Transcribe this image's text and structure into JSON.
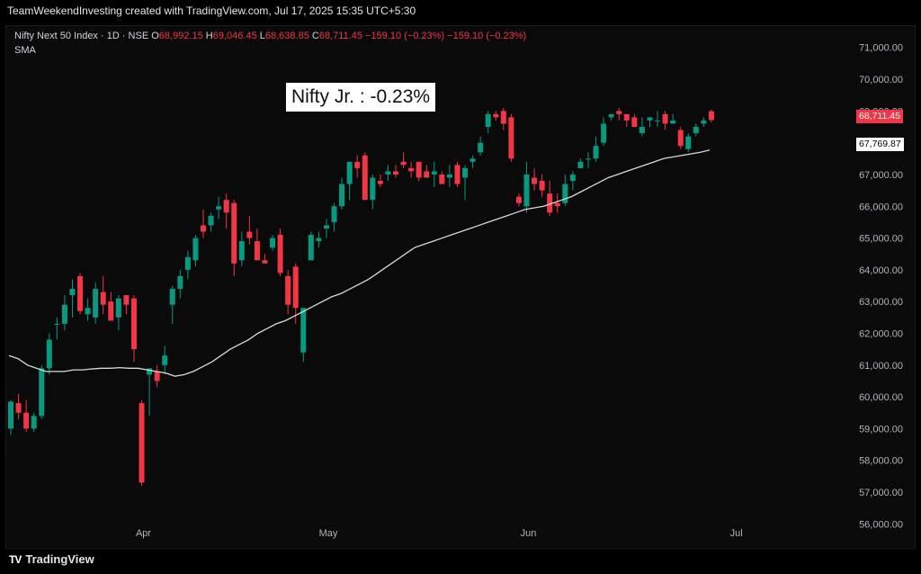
{
  "header": {
    "banner": "TeamWeekendInvesting created with TradingView.com, Jul 17, 2025 15:35 UTC+5:30"
  },
  "legend": {
    "symbol": "Nifty Next 50 Index · 1D · NSE",
    "o_label": "O",
    "o_value": "68,992.15",
    "h_label": "H",
    "h_value": "69,046.45",
    "l_label": "L",
    "l_value": "68,638.85",
    "c_label": "C",
    "c_value": "68,711.45",
    "change": "−159.10 (−0.23%)",
    "change2": "−159.10 (−0.23%)",
    "indicator": "SMA"
  },
  "annotation": "Nifty Jr. : -0.23%",
  "price_tags": {
    "last_price": "68,711.45",
    "sma_value": "67,769.87"
  },
  "branding": {
    "logo": "TV",
    "name": "TradingView"
  },
  "colors": {
    "up": "#089981",
    "down": "#f23645",
    "sma": "#d9d9d9",
    "background": "#0a0a0a",
    "axis_text": "#b2b5be"
  },
  "chart_data": {
    "type": "candlestick",
    "title": "Nifty Next 50 Index · 1D · NSE",
    "ylim": [
      55500,
      71700
    ],
    "y_ticks": [
      "71,000.00",
      "70,000.00",
      "69,000.00",
      "68,000.00",
      "67,000.00",
      "66,000.00",
      "65,000.00",
      "64,000.00",
      "63,000.00",
      "62,000.00",
      "61,000.00",
      "60,000.00",
      "59,000.00",
      "58,000.00",
      "57,000.00",
      "56,000.00"
    ],
    "y_tick_values": [
      71000,
      70000,
      69000,
      68000,
      67000,
      66000,
      65000,
      64000,
      63000,
      62000,
      61000,
      60000,
      59000,
      58000,
      57000,
      56000
    ],
    "x_ticks": [
      {
        "label": "Apr",
        "index": 17
      },
      {
        "label": "May",
        "index": 41
      },
      {
        "label": "Jun",
        "index": 67
      },
      {
        "label": "Jul",
        "index": 94
      }
    ],
    "candles": [
      [
        59000,
        59900,
        58800,
        59850
      ],
      [
        59800,
        60100,
        59300,
        59500
      ],
      [
        59500,
        59900,
        58900,
        59000
      ],
      [
        59000,
        59500,
        58900,
        59400
      ],
      [
        59400,
        61000,
        59300,
        60900
      ],
      [
        60900,
        62000,
        60700,
        61800
      ],
      [
        62300,
        62500,
        61800,
        62300
      ],
      [
        62300,
        63200,
        62100,
        62900
      ],
      [
        63200,
        63700,
        62500,
        63400
      ],
      [
        63800,
        63900,
        62600,
        62700
      ],
      [
        62600,
        63100,
        62400,
        62800
      ],
      [
        62500,
        63600,
        62300,
        63400
      ],
      [
        63300,
        63800,
        62600,
        62900
      ],
      [
        63000,
        63300,
        62500,
        62400
      ],
      [
        62500,
        63200,
        62100,
        63100
      ],
      [
        63200,
        63200,
        62600,
        62900
      ],
      [
        63100,
        63200,
        61100,
        61500
      ],
      [
        59800,
        59900,
        57200,
        57300
      ],
      [
        60700,
        60800,
        59400,
        60900
      ],
      [
        60800,
        61000,
        60300,
        60500
      ],
      [
        61000,
        61600,
        60700,
        61300
      ],
      [
        62900,
        63500,
        62300,
        63400
      ],
      [
        63400,
        64000,
        63100,
        63800
      ],
      [
        64000,
        64600,
        63700,
        64400
      ],
      [
        64300,
        65100,
        64100,
        65000
      ],
      [
        65400,
        65900,
        65000,
        65200
      ],
      [
        65400,
        65800,
        65200,
        65700
      ],
      [
        65900,
        66300,
        65600,
        66000
      ],
      [
        66200,
        66400,
        65300,
        65800
      ],
      [
        66100,
        66200,
        63800,
        64200
      ],
      [
        64300,
        65200,
        64100,
        64900
      ],
      [
        65200,
        65700,
        64800,
        65000
      ],
      [
        64900,
        65300,
        64300,
        64300
      ],
      [
        64300,
        64500,
        64200,
        64200
      ],
      [
        64700,
        65100,
        64600,
        65000
      ],
      [
        65100,
        65300,
        63800,
        63900
      ],
      [
        63800,
        64000,
        62600,
        62900
      ],
      [
        64100,
        64200,
        62300,
        62800
      ],
      [
        61400,
        62800,
        61100,
        62800
      ],
      [
        64300,
        65200,
        64300,
        65100
      ],
      [
        64900,
        65200,
        64700,
        65000
      ],
      [
        65300,
        65600,
        65000,
        65400
      ],
      [
        65500,
        66100,
        65200,
        66000
      ],
      [
        66000,
        66900,
        65900,
        66700
      ],
      [
        66700,
        67400,
        66200,
        67400
      ],
      [
        67400,
        67600,
        66900,
        67200
      ],
      [
        67600,
        67700,
        66200,
        66200
      ],
      [
        66200,
        67000,
        65900,
        66900
      ],
      [
        66800,
        67000,
        66600,
        66700
      ],
      [
        67000,
        67300,
        66800,
        67100
      ],
      [
        67100,
        67300,
        66900,
        67000
      ],
      [
        67400,
        67700,
        67200,
        67300
      ],
      [
        67200,
        67400,
        66900,
        67100
      ],
      [
        67400,
        67400,
        66800,
        66900
      ],
      [
        67100,
        67300,
        66900,
        66900
      ],
      [
        67000,
        67400,
        66600,
        67100
      ],
      [
        67000,
        67100,
        66800,
        66700
      ],
      [
        66900,
        67300,
        66600,
        67000
      ],
      [
        67300,
        67400,
        66600,
        66700
      ],
      [
        66900,
        67300,
        66200,
        67200
      ],
      [
        67400,
        67600,
        67200,
        67500
      ],
      [
        67700,
        68200,
        67600,
        68000
      ],
      [
        68500,
        69000,
        68300,
        68900
      ],
      [
        68900,
        69000,
        68700,
        68800
      ],
      [
        69000,
        69100,
        68400,
        68600
      ],
      [
        68800,
        68900,
        67400,
        67500
      ],
      [
        66300,
        66400,
        66000,
        66100
      ],
      [
        66000,
        67400,
        65800,
        67000
      ],
      [
        66900,
        67200,
        66500,
        66700
      ],
      [
        66800,
        67000,
        66300,
        66500
      ],
      [
        66400,
        66800,
        65700,
        65800
      ],
      [
        66100,
        66400,
        65800,
        66000
      ],
      [
        66100,
        67000,
        66000,
        66700
      ],
      [
        66800,
        67100,
        66500,
        67000
      ],
      [
        67200,
        67500,
        67200,
        67400
      ],
      [
        67500,
        67700,
        67200,
        67500
      ],
      [
        67500,
        68200,
        67400,
        67900
      ],
      [
        68000,
        68800,
        67900,
        68600
      ],
      [
        68800,
        68900,
        68700,
        68900
      ],
      [
        69000,
        69100,
        68700,
        68900
      ],
      [
        68900,
        68900,
        68500,
        68700
      ],
      [
        68800,
        68900,
        68500,
        68500
      ],
      [
        68300,
        68800,
        68200,
        68500
      ],
      [
        68700,
        68800,
        68500,
        68800
      ],
      [
        68700,
        69000,
        68500,
        68700
      ],
      [
        68900,
        69000,
        68400,
        68600
      ],
      [
        68600,
        68900,
        68600,
        68700
      ],
      [
        68400,
        68500,
        67800,
        67900
      ],
      [
        67800,
        68300,
        67700,
        68200
      ],
      [
        68300,
        68600,
        68200,
        68500
      ],
      [
        68600,
        68800,
        68500,
        68700
      ],
      [
        68992.15,
        69046.45,
        68638.85,
        68711.45
      ]
    ],
    "sma": {
      "name": "SMA",
      "values": [
        61300,
        61200,
        61000,
        60900,
        60800,
        60800,
        60800,
        60850,
        60850,
        60880,
        60900,
        60900,
        60920,
        60900,
        60900,
        60850,
        60800,
        60750,
        60650,
        60700,
        60800,
        60950,
        61100,
        61300,
        61500,
        61650,
        61800,
        62000,
        62150,
        62300,
        62400,
        62550,
        62700,
        62850,
        63000,
        63150,
        63250,
        63400,
        63550,
        63700,
        63900,
        64100,
        64300,
        64500,
        64700,
        64800,
        64900,
        65000,
        65100,
        65200,
        65300,
        65400,
        65500,
        65600,
        65700,
        65800,
        65900,
        65950,
        66000,
        66100,
        66200,
        66300,
        66450,
        66600,
        66750,
        66900,
        67000,
        67100,
        67200,
        67300,
        67400,
        67500,
        67550,
        67600,
        67650,
        67700,
        67769.87
      ],
      "start_index": 0
    }
  }
}
